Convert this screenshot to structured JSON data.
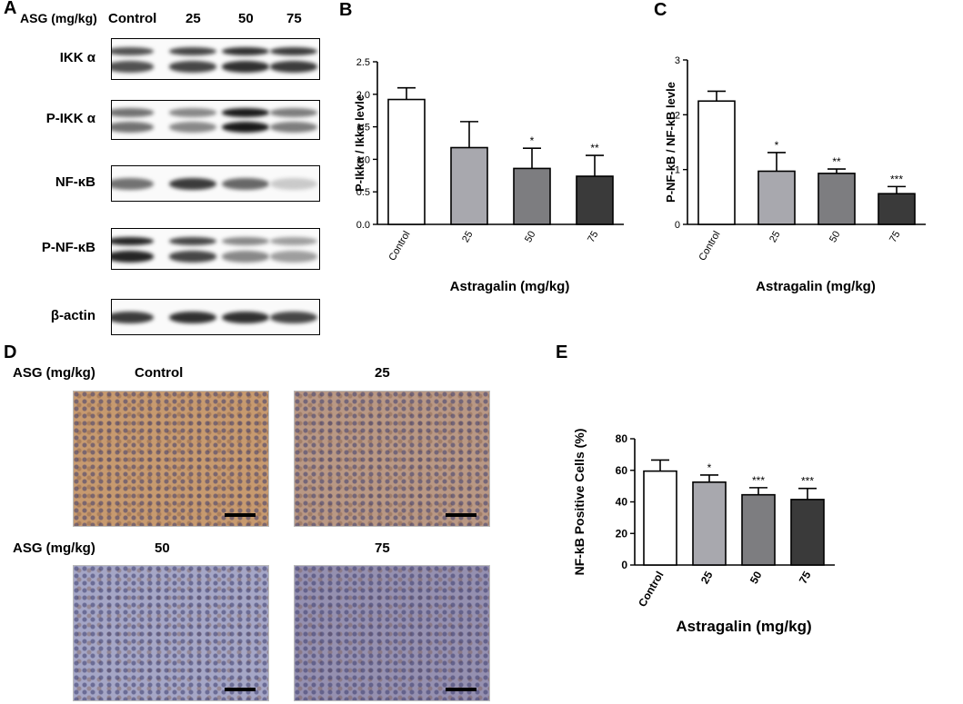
{
  "panels": {
    "A": "A",
    "B": "B",
    "C": "C",
    "D": "D",
    "E": "E"
  },
  "blot": {
    "header_label": "ASG (mg/kg)",
    "lanes": [
      "Control",
      "25",
      "50",
      "75"
    ],
    "rows": [
      {
        "label": "IKK α",
        "intensity": [
          0.7,
          0.75,
          0.85,
          0.8
        ],
        "double": true
      },
      {
        "label": "P-IKK α",
        "intensity": [
          0.55,
          0.45,
          0.95,
          0.5
        ],
        "double": true
      },
      {
        "label": "NF-κB",
        "intensity": [
          0.55,
          0.8,
          0.6,
          0.15
        ],
        "double": false
      },
      {
        "label": "P-NF-κB",
        "intensity": [
          0.9,
          0.75,
          0.45,
          0.35
        ],
        "double": true
      },
      {
        "label": "β-actin",
        "intensity": [
          0.8,
          0.85,
          0.85,
          0.75
        ],
        "double": false
      }
    ]
  },
  "ihc": {
    "row_label": "ASG (mg/kg)",
    "titles": [
      "Control",
      "25",
      "50",
      "75"
    ],
    "stain_colors": [
      "#c79a6f",
      "#b99884",
      "#a5a6c6",
      "#9590b0"
    ]
  },
  "chart_data": [
    {
      "type": "bar",
      "panel": "B",
      "categories": [
        "Control",
        "25",
        "50",
        "75"
      ],
      "values": [
        1.92,
        1.18,
        0.86,
        0.74
      ],
      "errors": [
        0.18,
        0.4,
        0.31,
        0.32
      ],
      "significance": [
        "",
        "",
        "*",
        "**"
      ],
      "colors": [
        "#ffffff",
        "#a8a8ae",
        "#7d7d80",
        "#3a3a3a"
      ],
      "title": "",
      "xlabel": "Astragalin (mg/kg)",
      "ylabel": "P-Ikka / Ikka levle",
      "ylim": [
        0,
        2.5
      ],
      "yticks": [
        "0.0",
        "0.5",
        "1.0",
        "1.5",
        "2.0",
        "2.5"
      ],
      "grid": false
    },
    {
      "type": "bar",
      "panel": "C",
      "categories": [
        "Control",
        "25",
        "50",
        "75"
      ],
      "values": [
        2.25,
        0.97,
        0.93,
        0.56
      ],
      "errors": [
        0.18,
        0.34,
        0.08,
        0.13
      ],
      "significance": [
        "",
        "*",
        "**",
        "***"
      ],
      "colors": [
        "#ffffff",
        "#a8a8ae",
        "#7d7d80",
        "#3a3a3a"
      ],
      "title": "",
      "xlabel": "Astragalin (mg/kg)",
      "ylabel": "P-NF-kB / NF-kB levle",
      "ylim": [
        0,
        3
      ],
      "yticks": [
        "0",
        "1",
        "2",
        "3"
      ],
      "grid": false
    },
    {
      "type": "bar",
      "panel": "E",
      "categories": [
        "Control",
        "25",
        "50",
        "75"
      ],
      "values": [
        59.5,
        52.5,
        44.5,
        41.5
      ],
      "errors": [
        7,
        4.5,
        4.5,
        7
      ],
      "significance": [
        "",
        "*",
        "***",
        "***"
      ],
      "colors": [
        "#ffffff",
        "#a8a8ae",
        "#7d7d80",
        "#3a3a3a"
      ],
      "title": "",
      "xlabel": "Astragalin (mg/kg)",
      "ylabel": "NF-kB Positive Cells (%)",
      "ylim": [
        0,
        80
      ],
      "yticks": [
        "0",
        "20",
        "40",
        "60",
        "80"
      ],
      "grid": false
    }
  ]
}
